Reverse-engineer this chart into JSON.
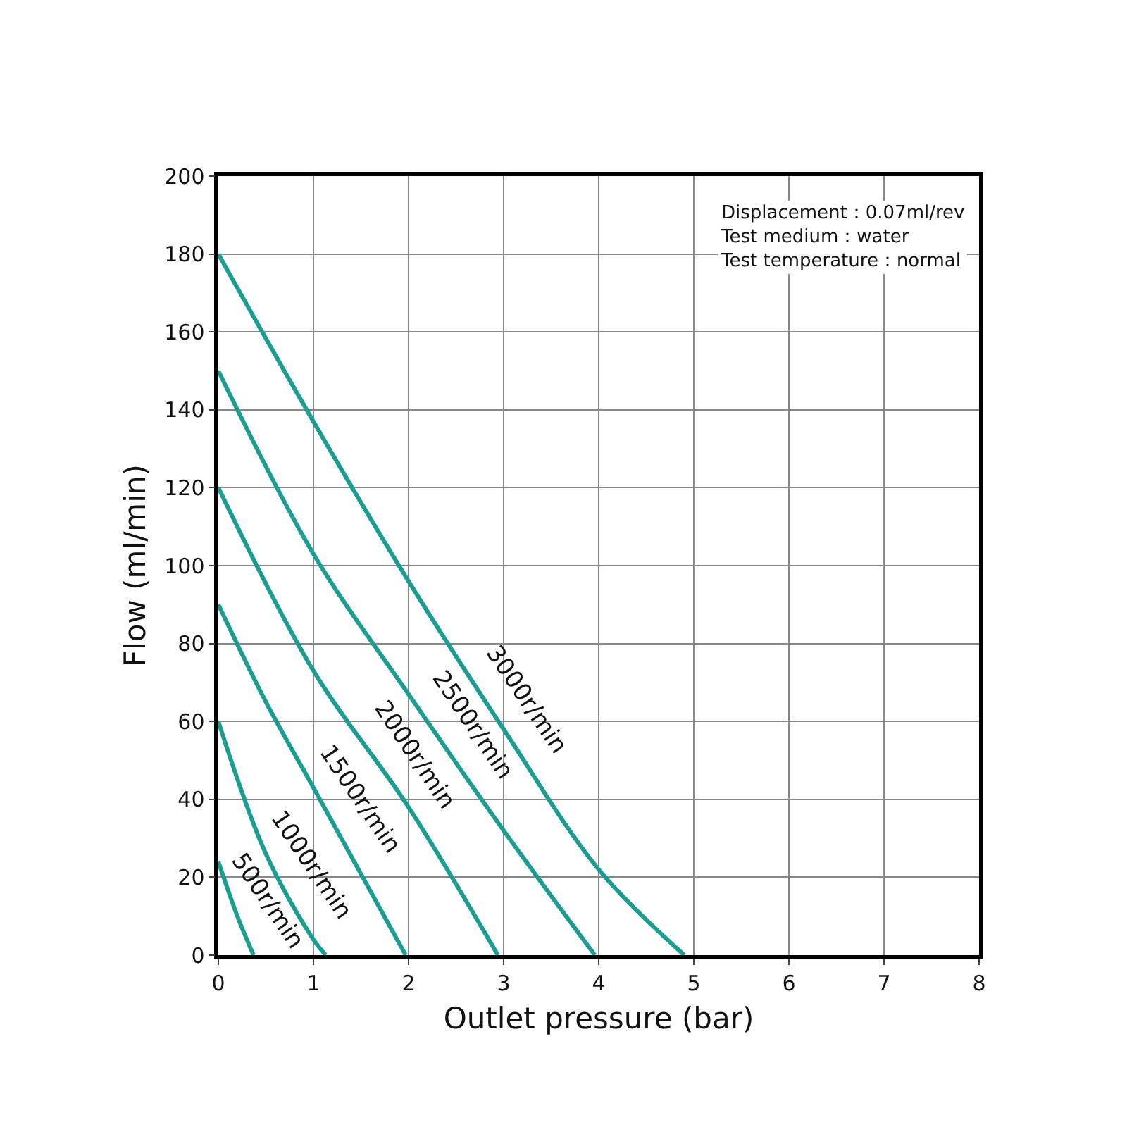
{
  "chart_data": {
    "type": "line",
    "xlabel": "Outlet pressure (bar)",
    "ylabel": "Flow (ml/min)",
    "xlim": [
      0,
      8
    ],
    "xticks": [
      0,
      1,
      2,
      3,
      4,
      5,
      6,
      7,
      8
    ],
    "ylim": [
      0,
      200
    ],
    "yticks": [
      0,
      20,
      40,
      60,
      80,
      100,
      120,
      140,
      160,
      180,
      200
    ],
    "grid": true,
    "legend": false,
    "marker": "none",
    "line_style": "solid",
    "series": [
      {
        "name": "3000r/min",
        "color": "#1a9e94",
        "x": [
          0,
          1,
          2,
          3,
          4,
          4.9
        ],
        "values": [
          180,
          137,
          96,
          58,
          22,
          0
        ]
      },
      {
        "name": "2500r/min",
        "color": "#1a9e94",
        "x": [
          0,
          1,
          2,
          3,
          3.96
        ],
        "values": [
          150,
          103,
          67,
          32,
          0
        ]
      },
      {
        "name": "2000r/min",
        "color": "#1a9e94",
        "x": [
          0,
          1,
          2,
          2.94
        ],
        "values": [
          120,
          73,
          38,
          0
        ]
      },
      {
        "name": "1500r/min",
        "color": "#1a9e94",
        "x": [
          0,
          0.5,
          1,
          1.97
        ],
        "values": [
          90,
          65,
          43,
          0
        ]
      },
      {
        "name": "1000r/min",
        "color": "#1a9e94",
        "x": [
          0,
          0.5,
          1,
          1.13
        ],
        "values": [
          60,
          26,
          4,
          0
        ]
      },
      {
        "name": "500r/min",
        "color": "#1a9e94",
        "x": [
          0,
          0.2,
          0.37
        ],
        "values": [
          24,
          10,
          0
        ]
      }
    ],
    "annotations": [
      "Displacement：0.07ml/rev",
      "Test medium：water",
      "Test temperature：normal"
    ]
  }
}
